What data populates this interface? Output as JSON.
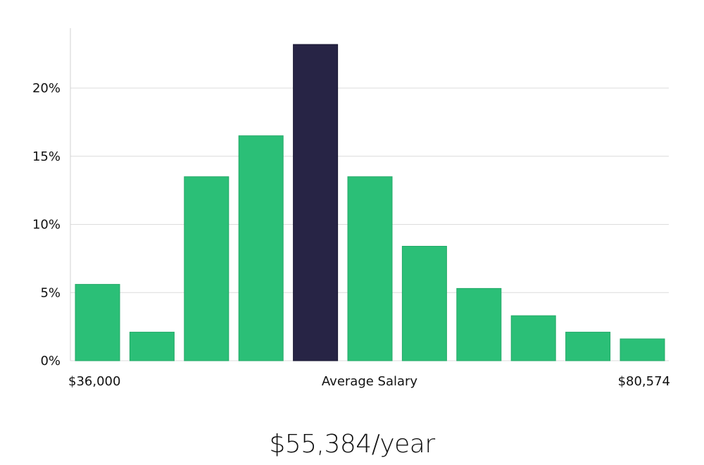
{
  "chart_data": {
    "type": "bar",
    "categories": [
      "1",
      "2",
      "3",
      "4",
      "5",
      "6",
      "7",
      "8",
      "9",
      "10",
      "11"
    ],
    "values": [
      5.6,
      2.1,
      13.5,
      16.5,
      23.2,
      13.5,
      8.4,
      5.3,
      3.3,
      2.1,
      1.6
    ],
    "highlight_index": 4,
    "yticks": [
      "0%",
      "5%",
      "10%",
      "15%",
      "20%"
    ],
    "ytick_values": [
      0,
      5,
      10,
      15,
      20
    ],
    "ylim": [
      0,
      24.8
    ],
    "grid": true,
    "x_min_label": "$36,000",
    "x_mid_label": "Average Salary",
    "x_max_label": "$80,574"
  },
  "summary": {
    "average_salary": "$55,384/year"
  },
  "colors": {
    "bar": "#2bbf77",
    "highlight": "#272445",
    "grid": "#dcdcdc",
    "axis": "#d0d0d0"
  }
}
